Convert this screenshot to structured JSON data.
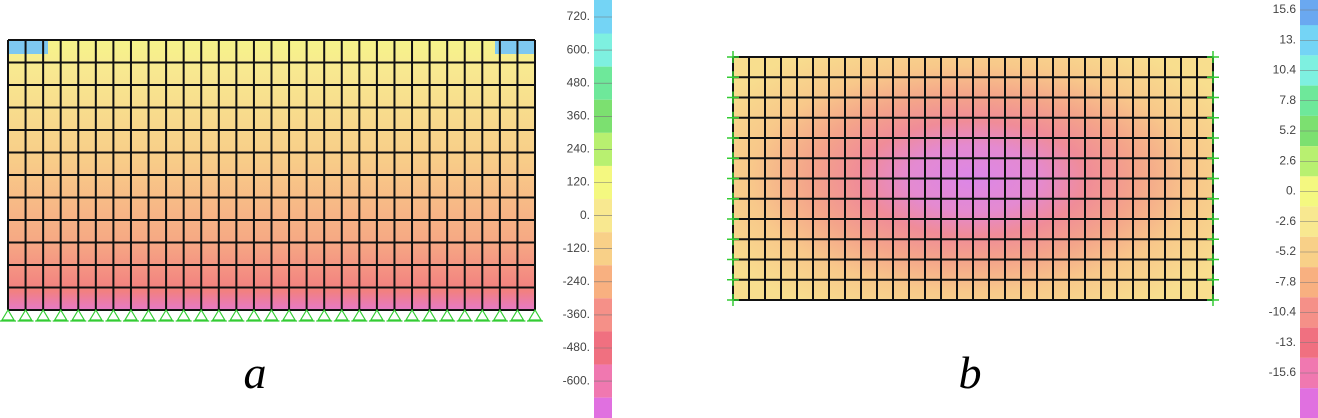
{
  "panels": [
    {
      "caption": "a",
      "legend": [
        "720.",
        "600.",
        "480.",
        "360.",
        "240.",
        "120.",
        "0.",
        "-120.",
        "-240.",
        "-360.",
        "-480.",
        "-600."
      ]
    },
    {
      "caption": "b",
      "legend": [
        "15.6",
        "13.",
        "10.4",
        "7.8",
        "5.2",
        "2.6",
        "0.",
        "-2.6",
        "-5.2",
        "-7.8",
        "-10.4",
        "-13.",
        "-15.6"
      ]
    }
  ]
}
